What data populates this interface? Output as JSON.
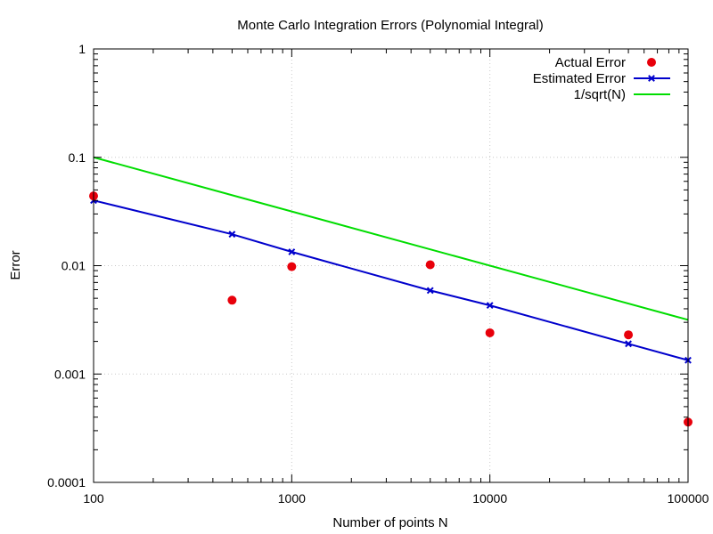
{
  "chart_data": {
    "type": "scatter",
    "title": "Monte Carlo Integration Errors (Polynomial Integral)",
    "xlabel": "Number of points N",
    "ylabel": "Error",
    "x_scale": "log",
    "y_scale": "log",
    "xlim": [
      100,
      100000
    ],
    "ylim": [
      0.0001,
      1
    ],
    "x_ticks": [
      100,
      1000,
      10000,
      100000
    ],
    "x_tick_labels": [
      "100",
      "1000",
      "10000",
      "100000"
    ],
    "y_ticks": [
      0.0001,
      0.001,
      0.01,
      0.1,
      1
    ],
    "y_tick_labels": [
      "0.0001",
      "0.001",
      "0.01",
      "0.1",
      "1"
    ],
    "grid": true,
    "legend_position": "top-right",
    "series": [
      {
        "name": "Actual Error",
        "style": "points",
        "color": "#e8000b",
        "x": [
          100,
          500,
          1000,
          5000,
          10000,
          50000,
          100000
        ],
        "y": [
          0.044,
          0.0048,
          0.0098,
          0.0102,
          0.0024,
          0.0023,
          0.00036
        ]
      },
      {
        "name": "Estimated Error",
        "style": "linespoints",
        "color": "#0000cc",
        "x": [
          100,
          500,
          1000,
          5000,
          10000,
          50000,
          100000
        ],
        "y": [
          0.04,
          0.0195,
          0.0134,
          0.0059,
          0.0043,
          0.0019,
          0.00134
        ]
      },
      {
        "name": "1/sqrt(N)",
        "style": "line",
        "color": "#00dd00",
        "x": [
          100,
          100000
        ],
        "y": [
          0.1,
          0.0031623
        ]
      }
    ]
  }
}
